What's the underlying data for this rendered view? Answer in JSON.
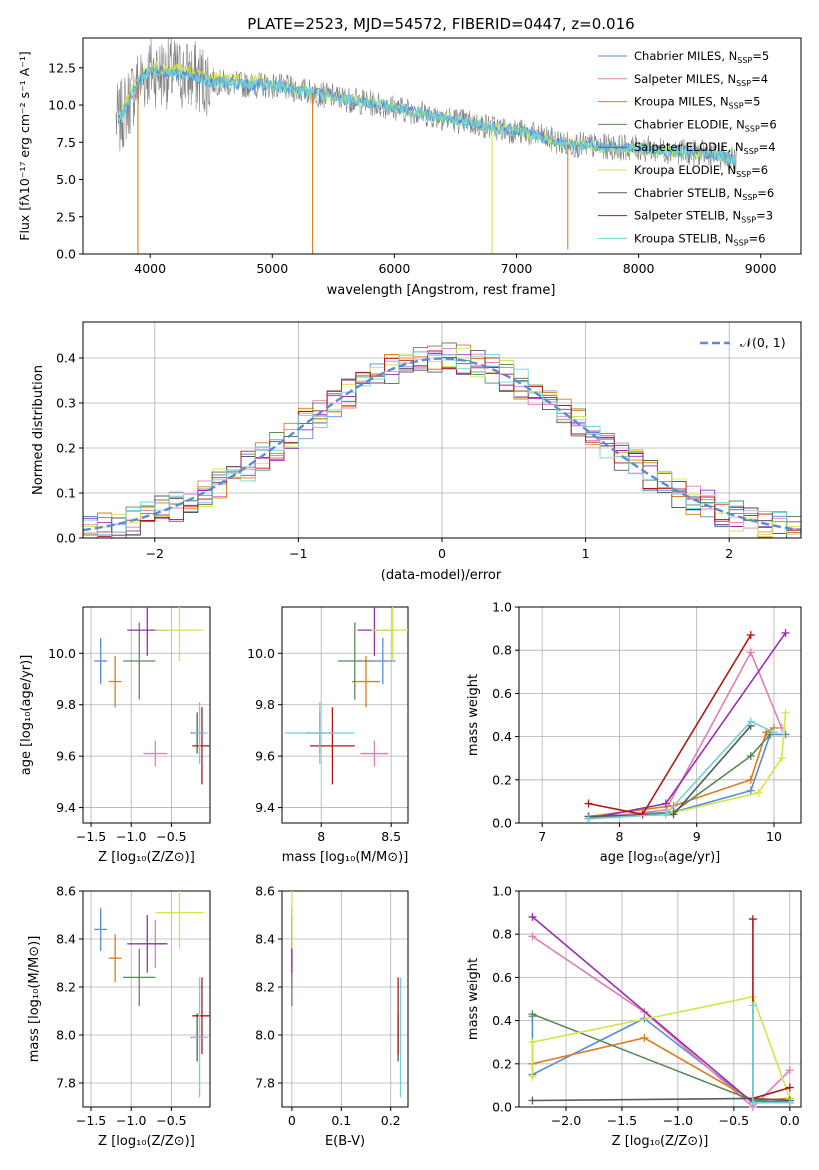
{
  "colors": {
    "chabrier_miles": "#5b8bd6",
    "salpeter_miles": "#e17fb4",
    "kroupa_miles": "#e07b1f",
    "chabrier_elodie": "#5a8a5a",
    "salpeter_elodie": "#9b2fb0",
    "kroupa_elodie": "#d2e64a",
    "chabrier_stelib": "#5a5a5a",
    "salpeter_stelib": "#b01818",
    "kroupa_stelib": "#6fd2d6",
    "data": "#808080",
    "normal": "#5b8bd6",
    "grid": "#b0b0b0"
  },
  "chart_data": [
    {
      "id": "spectrum",
      "type": "line",
      "title": "PLATE=2523, MJD=54572, FIBERID=0447, z=0.016",
      "xlabel": "wavelength [Angstrom, rest frame]",
      "ylabel": "Flux [fλ10⁻¹⁷ erg cm⁻² s⁻¹ A⁻¹]",
      "xlim": [
        3450,
        9330
      ],
      "ylim": [
        0,
        14.5
      ],
      "xticks": [
        4000,
        5000,
        6000,
        7000,
        8000,
        9000
      ],
      "yticks": [
        0.0,
        2.5,
        5.0,
        7.5,
        10.0,
        12.5
      ],
      "grid": false,
      "legend_position": "top-right",
      "legend": [
        {
          "name": "Chabrier MILES, N",
          "sub": "SSP",
          "tail": "=5",
          "color_key": "chabrier_miles"
        },
        {
          "name": "Salpeter MILES, N",
          "sub": "SSP",
          "tail": "=4",
          "color_key": "salpeter_miles"
        },
        {
          "name": "Kroupa MILES, N",
          "sub": "SSP",
          "tail": "=5",
          "color_key": "kroupa_miles"
        },
        {
          "name": "Chabrier ELODIE, N",
          "sub": "SSP",
          "tail": "=6",
          "color_key": "chabrier_elodie"
        },
        {
          "name": "Salpeter ELODIE, N",
          "sub": "SSP",
          "tail": "=4",
          "color_key": "salpeter_elodie"
        },
        {
          "name": "Kroupa ELODIE, N",
          "sub": "SSP",
          "tail": "=6",
          "color_key": "kroupa_elodie"
        },
        {
          "name": "Chabrier STELIB, N",
          "sub": "SSP",
          "tail": "=6",
          "color_key": "chabrier_stelib"
        },
        {
          "name": "Salpeter STELIB, N",
          "sub": "SSP",
          "tail": "=3",
          "color_key": "salpeter_stelib"
        },
        {
          "name": "Kroupa STELIB, N",
          "sub": "SSP",
          "tail": "=6",
          "color_key": "kroupa_stelib"
        }
      ],
      "continuum": {
        "x": [
          3750,
          3900,
          4000,
          4100,
          4300,
          4500,
          4700,
          5000,
          5300,
          5600,
          5900,
          6200,
          6500,
          6800,
          7100,
          7400,
          7700,
          8000,
          8300,
          8600,
          8800
        ],
        "y": [
          9.0,
          11.5,
          12.3,
          12.2,
          12.0,
          11.6,
          11.4,
          11.3,
          10.9,
          10.4,
          10.0,
          9.5,
          9.0,
          8.5,
          8.1,
          7.4,
          7.2,
          7.1,
          6.9,
          6.7,
          6.3
        ]
      },
      "dips": [
        {
          "x": 3900,
          "y": 0.0
        },
        {
          "x": 5330,
          "y": 0.0
        },
        {
          "x": 6800,
          "y": 0.0
        },
        {
          "x": 7420,
          "y": 0.3
        }
      ]
    },
    {
      "id": "residuals",
      "type": "bar",
      "xlabel": "(data-model)/error",
      "ylabel": "Normed distribution",
      "xlim": [
        -2.5,
        2.5
      ],
      "ylim": [
        0,
        0.48
      ],
      "xticks": [
        -2,
        -1,
        0,
        1,
        2
      ],
      "xtick_labels": [
        "−2",
        "−1",
        "0",
        "1",
        "2"
      ],
      "yticks": [
        0.0,
        0.1,
        0.2,
        0.3,
        0.4
      ],
      "grid": true,
      "legend_position": "top-right",
      "legend_label": "𝒩(0, 1)",
      "bin_width": 0.1
    },
    {
      "id": "age_vs_z",
      "type": "scatter",
      "xlabel": "Z [log₁₀(Z/Z⊙)]",
      "ylabel": "age  [log₁₀(age/yr)]",
      "xlim": [
        -1.6,
        -0.02
      ],
      "ylim": [
        9.34,
        10.18
      ],
      "xticks": [
        -1.5,
        -1.0,
        -0.5
      ],
      "xtick_labels": [
        "−1.5",
        "−1.0",
        "−0.5"
      ],
      "yticks": [
        9.4,
        9.6,
        9.8,
        10.0
      ],
      "grid": true
    },
    {
      "id": "age_vs_mass",
      "type": "scatter",
      "xlabel": "mass [log₁₀(M/M⊙)]",
      "xlim": [
        7.72,
        8.62
      ],
      "ylim": [
        9.34,
        10.18
      ],
      "xticks": [
        8.0,
        8.5
      ],
      "yticks": [
        9.4,
        9.6,
        9.8,
        10.0
      ],
      "grid": true
    },
    {
      "id": "weight_vs_age",
      "type": "line",
      "xlabel": "age  [log₁₀(age/yr)]",
      "ylabel": "mass weight",
      "xlim": [
        6.7,
        10.35
      ],
      "ylim": [
        0,
        1.0
      ],
      "xticks": [
        7,
        8,
        9,
        10
      ],
      "yticks": [
        0.0,
        0.2,
        0.4,
        0.6,
        0.8,
        1.0
      ],
      "grid": true
    },
    {
      "id": "mass_vs_z",
      "type": "scatter",
      "xlabel": "Z [log₁₀(Z/Z⊙)]",
      "ylabel": "mass [log₁₀(M/M⊙)]",
      "xlim": [
        -1.6,
        -0.02
      ],
      "ylim": [
        7.7,
        8.6
      ],
      "xticks": [
        -1.5,
        -1.0,
        -0.5
      ],
      "xtick_labels": [
        "−1.5",
        "−1.0",
        "−0.5"
      ],
      "yticks": [
        7.8,
        8.0,
        8.2,
        8.4,
        8.6
      ],
      "grid": true
    },
    {
      "id": "mass_vs_ebv",
      "type": "scatter",
      "xlabel": "E(B-V)",
      "xlim": [
        -0.02,
        0.235
      ],
      "ylim": [
        7.7,
        8.6
      ],
      "xticks": [
        0.0,
        0.1,
        0.2
      ],
      "yticks": [
        7.8,
        8.0,
        8.2,
        8.4,
        8.6
      ],
      "grid": true
    },
    {
      "id": "weight_vs_z",
      "type": "line",
      "xlabel": "Z [log₁₀(Z/Z⊙)]",
      "ylabel": "mass weight",
      "xlim": [
        -2.42,
        0.1
      ],
      "ylim": [
        0,
        1.0
      ],
      "xticks": [
        -2.0,
        -1.5,
        -1.0,
        -0.5,
        0.0
      ],
      "xtick_labels": [
        "−2.0",
        "−1.5",
        "−1.0",
        "−0.5",
        "0.0"
      ],
      "yticks": [
        0.0,
        0.2,
        0.4,
        0.6,
        0.8,
        1.0
      ],
      "grid": true
    }
  ],
  "models": [
    {
      "key": "chabrier_miles",
      "Z": -1.38,
      "age": 9.97,
      "mass": 8.44,
      "ebv": 0.0,
      "dZ": 0.08,
      "dAge": 0.09,
      "dMass": 0.09,
      "dE": 0.03,
      "wAge": [
        [
          7.6,
          0.03
        ],
        [
          8.7,
          0.05
        ],
        [
          9.7,
          0.15
        ],
        [
          9.95,
          0.41
        ],
        [
          10.15,
          0.41
        ]
      ],
      "wZ": [
        [
          -2.3,
          0.42
        ],
        [
          -2.3,
          0.15
        ],
        [
          -1.3,
          0.41
        ],
        [
          -0.33,
          0.02
        ],
        [
          0.0,
          0.03
        ]
      ]
    },
    {
      "key": "salpeter_miles",
      "Z": -0.7,
      "age": 9.61,
      "mass": 8.38,
      "ebv": 0.0,
      "dZ": 0.15,
      "dAge": 0.05,
      "dMass": 0.1,
      "dE": 0.03,
      "wAge": [
        [
          7.6,
          0.02
        ],
        [
          8.6,
          0.06
        ],
        [
          9.7,
          0.79
        ],
        [
          10.1,
          0.44
        ]
      ],
      "wZ": [
        [
          -2.3,
          0.79
        ],
        [
          -1.3,
          0.44
        ],
        [
          -0.33,
          0.0
        ],
        [
          0.0,
          0.17
        ]
      ]
    },
    {
      "key": "kroupa_miles",
      "Z": -1.2,
      "age": 9.89,
      "mass": 8.32,
      "ebv": 0.0,
      "dZ": 0.08,
      "dAge": 0.1,
      "dMass": 0.1,
      "dE": 0.03,
      "wAge": [
        [
          7.6,
          0.03
        ],
        [
          8.7,
          0.08
        ],
        [
          9.7,
          0.2
        ],
        [
          9.9,
          0.42
        ],
        [
          10.0,
          0.44
        ]
      ],
      "wZ": [
        [
          -2.3,
          0.2
        ],
        [
          -1.3,
          0.32
        ],
        [
          -0.33,
          0.03
        ],
        [
          0.0,
          0.04
        ]
      ]
    },
    {
      "key": "chabrier_elodie",
      "Z": -0.9,
      "age": 9.97,
      "mass": 8.24,
      "ebv": 0.0,
      "dZ": 0.2,
      "dAge": 0.15,
      "dMass": 0.12,
      "dE": 0.03,
      "wAge": [
        [
          7.6,
          0.02
        ],
        [
          8.7,
          0.05
        ],
        [
          9.7,
          0.31
        ],
        [
          9.95,
          0.41
        ]
      ],
      "wZ": [
        [
          -2.3,
          0.43
        ],
        [
          -0.33,
          0.03
        ],
        [
          0.0,
          0.02
        ]
      ]
    },
    {
      "key": "salpeter_elodie",
      "Z": -0.8,
      "age": 10.09,
      "mass": 8.38,
      "ebv": 0.0,
      "dZ": 0.25,
      "dAge": 0.1,
      "dMass": 0.12,
      "dE": 0.03,
      "wAge": [
        [
          7.6,
          0.02
        ],
        [
          8.6,
          0.09
        ],
        [
          10.15,
          0.88
        ]
      ],
      "wZ": [
        [
          -2.3,
          0.88
        ],
        [
          -0.33,
          0.02
        ],
        [
          0.0,
          0.02
        ]
      ]
    },
    {
      "key": "kroupa_elodie",
      "Z": -0.4,
      "age": 10.09,
      "mass": 8.51,
      "ebv": 0.0,
      "dZ": 0.3,
      "dAge": 0.12,
      "dMass": 0.15,
      "dE": 0.03,
      "wAge": [
        [
          7.6,
          0.02
        ],
        [
          8.6,
          0.04
        ],
        [
          9.8,
          0.14
        ],
        [
          10.1,
          0.3
        ],
        [
          10.15,
          0.51
        ]
      ],
      "wZ": [
        [
          -2.3,
          0.14
        ],
        [
          -2.3,
          0.3
        ],
        [
          -0.33,
          0.51
        ],
        [
          0.0,
          0.04
        ]
      ]
    },
    {
      "key": "chabrier_stelib",
      "Z": -0.18,
      "age": 9.69,
      "mass": 7.99,
      "ebv": 0.215,
      "dZ": 0.08,
      "dAge": 0.08,
      "dMass": 0.1,
      "dE": 0.03,
      "wAge": [
        [
          7.6,
          0.03
        ],
        [
          8.7,
          0.04
        ],
        [
          9.7,
          0.45
        ]
      ],
      "wZ": [
        [
          -2.3,
          0.03
        ],
        [
          -0.33,
          0.04
        ],
        [
          0.0,
          0.03
        ]
      ]
    },
    {
      "key": "salpeter_stelib",
      "Z": -0.12,
      "age": 9.64,
      "mass": 8.08,
      "ebv": 0.215,
      "dZ": 0.12,
      "dAge": 0.15,
      "dMass": 0.16,
      "dE": 0.03,
      "wAge": [
        [
          7.6,
          0.09
        ],
        [
          8.3,
          0.04
        ],
        [
          9.7,
          0.87
        ]
      ],
      "wZ": [
        [
          -0.33,
          0.87
        ],
        [
          -0.33,
          0.04
        ],
        [
          0.0,
          0.09
        ]
      ]
    },
    {
      "key": "kroupa_stelib",
      "Z": -0.15,
      "age": 9.69,
      "mass": 7.99,
      "ebv": 0.22,
      "dZ": 0.1,
      "dAge": 0.12,
      "dMass": 0.25,
      "dE": 0.03,
      "wAge": [
        [
          7.6,
          0.02
        ],
        [
          8.6,
          0.04
        ],
        [
          9.7,
          0.47
        ],
        [
          10.0,
          0.42
        ]
      ],
      "wZ": [
        [
          -0.33,
          0.47
        ],
        [
          -0.33,
          0.02
        ],
        [
          0.0,
          0.02
        ]
      ]
    }
  ]
}
